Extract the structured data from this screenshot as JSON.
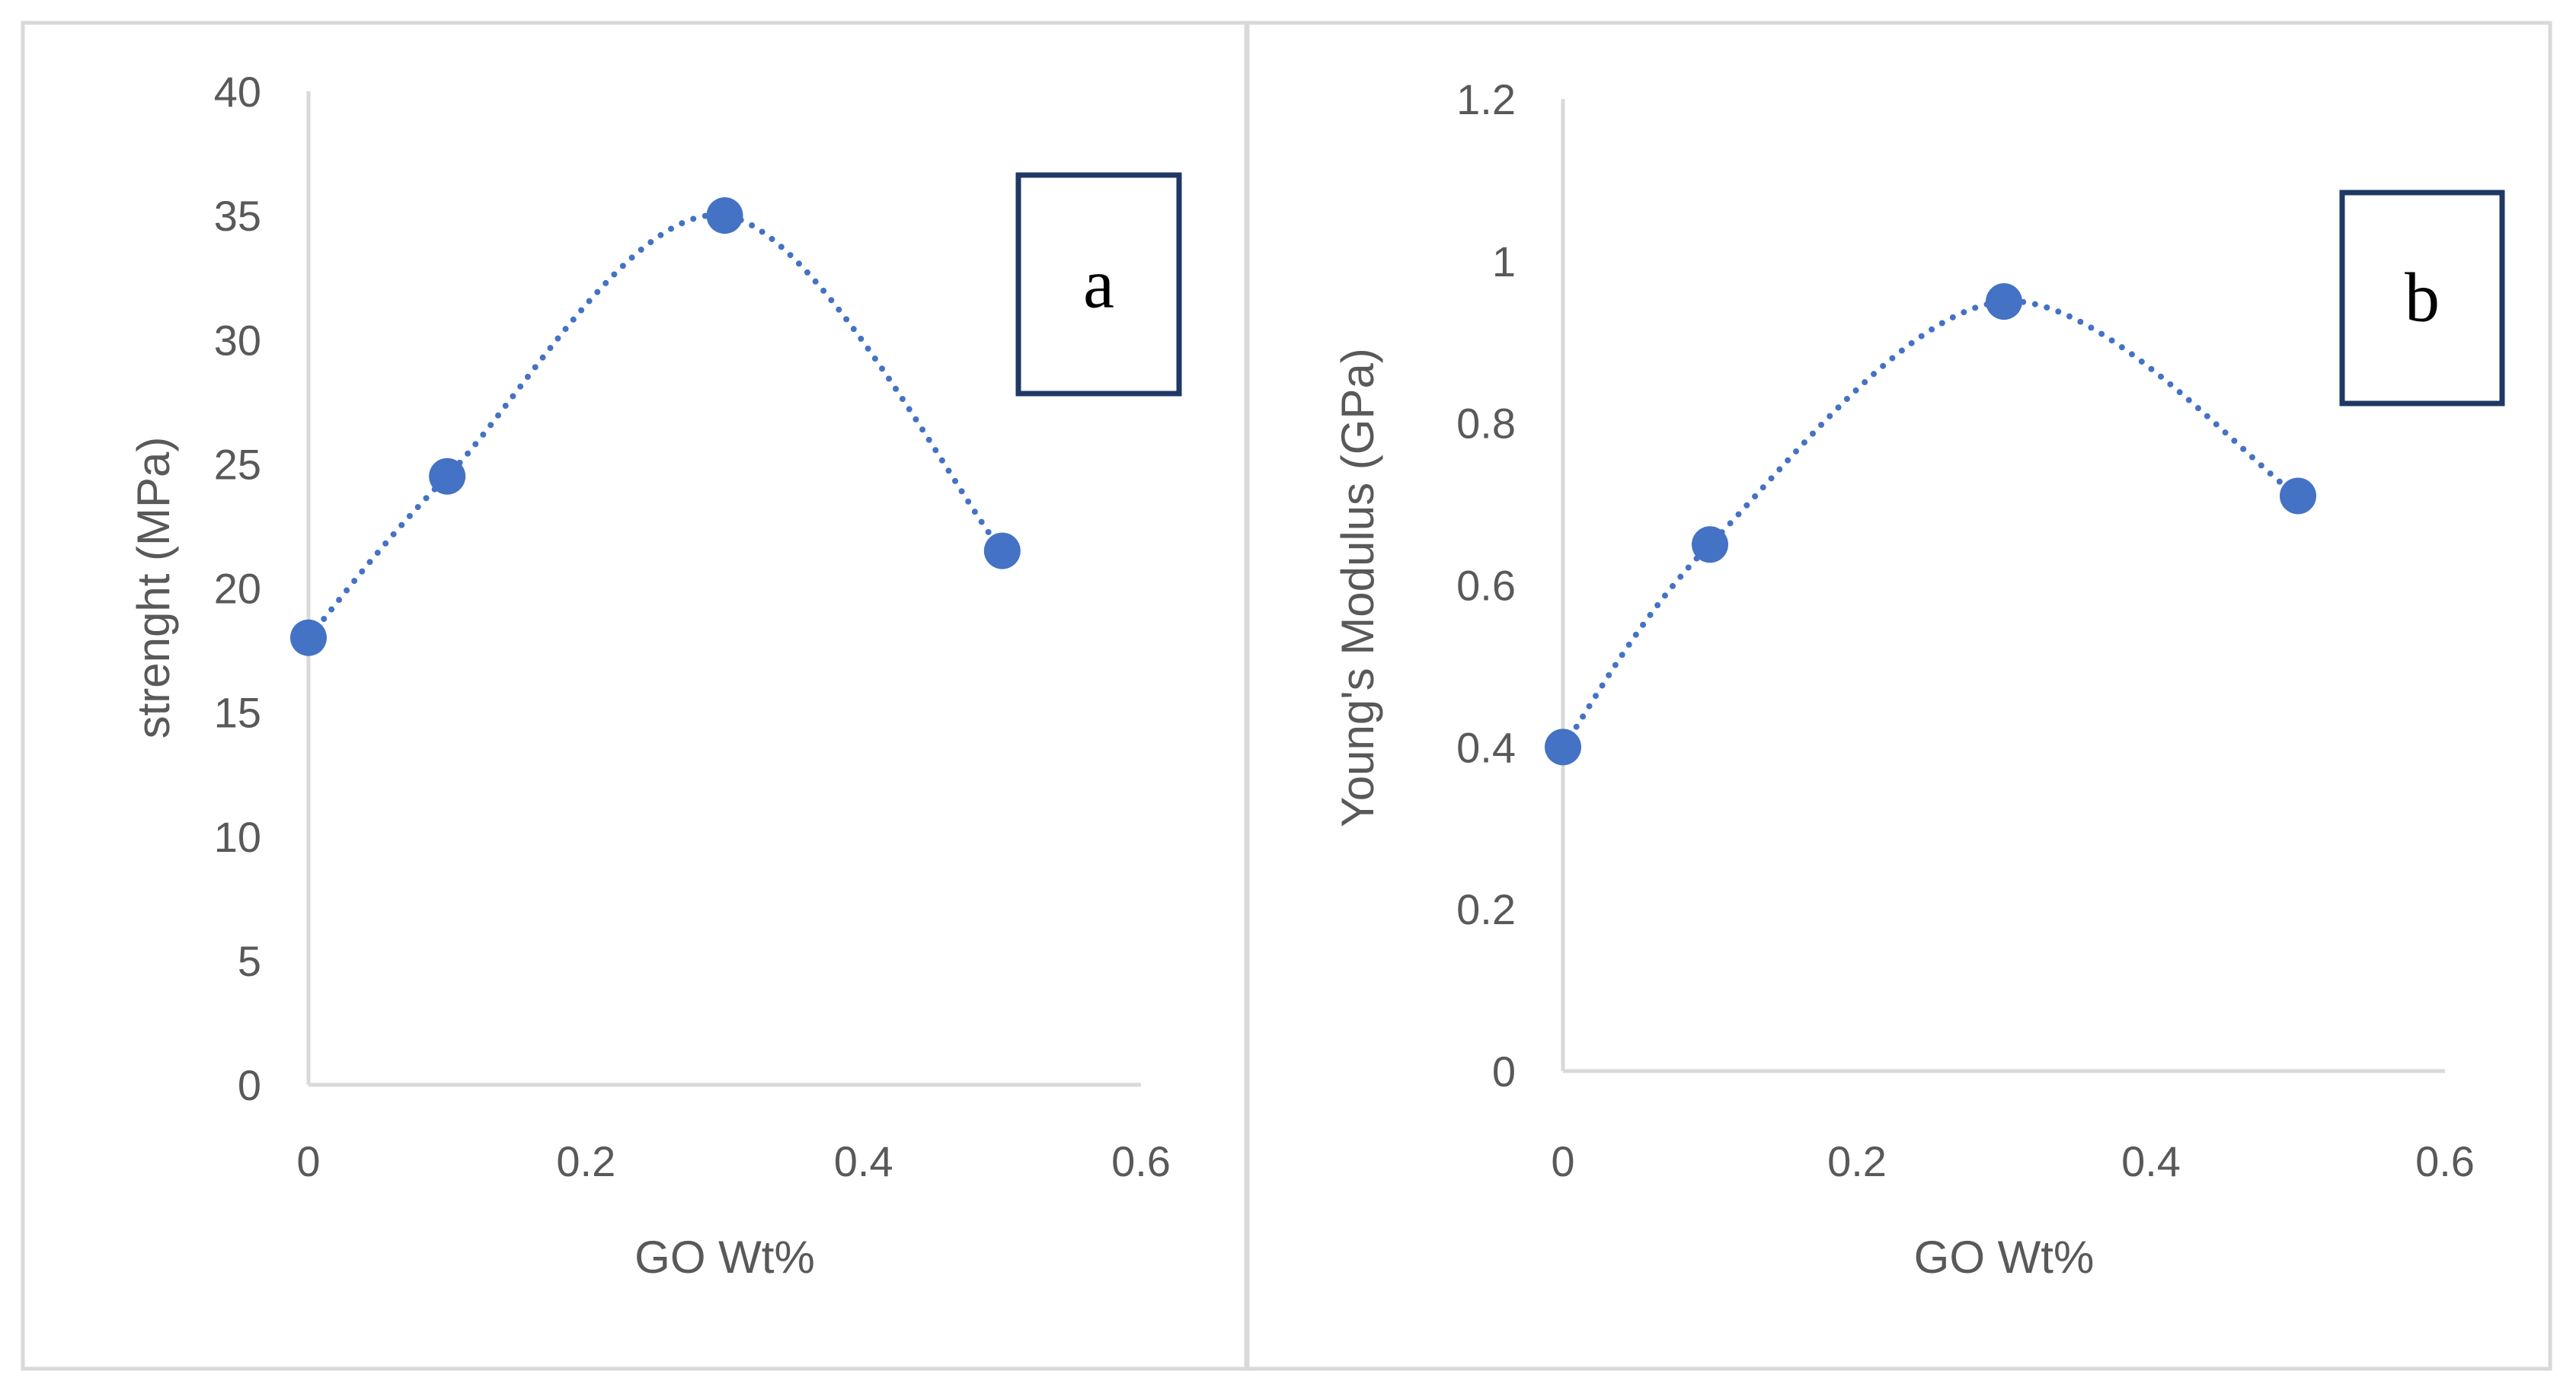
{
  "colors": {
    "series": "#4472c4",
    "axis": "#d9d9d9",
    "frame": "#d9d9d9",
    "label_box": "#1f3864",
    "text": "#595959"
  },
  "chart_data": [
    {
      "type": "scatter",
      "panel_label": "a",
      "title": "",
      "xlabel": "GO Wt%",
      "ylabel": "strenght (MPa)",
      "xlim": [
        0,
        0.6
      ],
      "ylim": [
        0,
        40
      ],
      "x_ticks": [
        0,
        0.2,
        0.4,
        0.6
      ],
      "x_tick_labels": [
        "0",
        "0.2",
        "0.4",
        "0.6"
      ],
      "y_ticks": [
        0,
        5,
        10,
        15,
        20,
        25,
        30,
        35,
        40
      ],
      "y_tick_labels": [
        "0",
        "5",
        "10",
        "15",
        "20",
        "25",
        "30",
        "35",
        "40"
      ],
      "series": [
        {
          "name": "strength",
          "x": [
            0,
            0.1,
            0.3,
            0.5
          ],
          "y": [
            18,
            24.5,
            35,
            21.5
          ]
        }
      ],
      "trendline": "dotted smooth",
      "grid": false,
      "legend": "none"
    },
    {
      "type": "scatter",
      "panel_label": "b",
      "title": "",
      "xlabel": "GO Wt%",
      "ylabel": "Young's Modulus (GPa)",
      "xlim": [
        0,
        0.6
      ],
      "ylim": [
        0,
        1.2
      ],
      "x_ticks": [
        0,
        0.2,
        0.4,
        0.6
      ],
      "x_tick_labels": [
        "0",
        "0.2",
        "0.4",
        "0.6"
      ],
      "y_ticks": [
        0,
        0.2,
        0.4,
        0.6,
        0.8,
        1,
        1.2
      ],
      "y_tick_labels": [
        "0",
        "0.2",
        "0.4",
        "0.6",
        "0.8",
        "1",
        "1.2"
      ],
      "series": [
        {
          "name": "modulus",
          "x": [
            0,
            0.1,
            0.3,
            0.5
          ],
          "y": [
            0.4,
            0.65,
            0.95,
            0.71
          ]
        }
      ],
      "trendline": "dotted smooth",
      "grid": false,
      "legend": "none"
    }
  ]
}
